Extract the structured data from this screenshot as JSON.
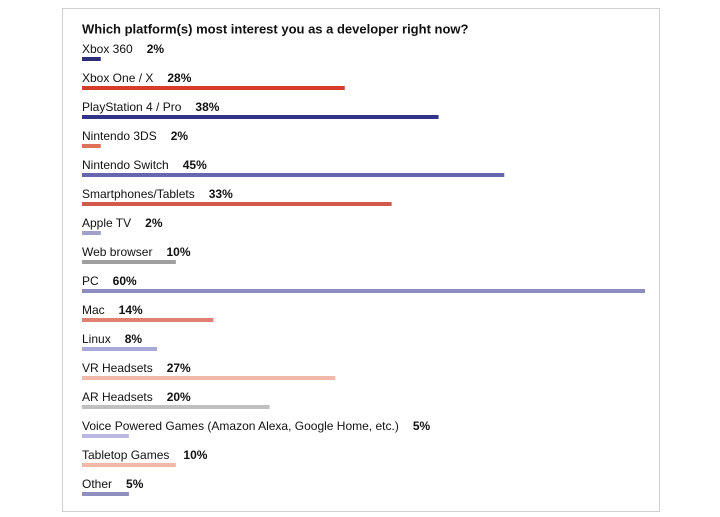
{
  "chart_data": {
    "type": "hbar",
    "title": "Which platform(s) most interest you as a developer right now?",
    "categories": [
      "Xbox 360",
      "Xbox One / X",
      "PlayStation 4 / Pro",
      "Nintendo 3DS",
      "Nintendo Switch",
      "Smartphones/Tablets",
      "Apple TV",
      "Web browser",
      "PC",
      "Mac",
      "Linux",
      "VR Headsets",
      "AR Headsets",
      "Voice Powered Games (Amazon Alexa, Google Home, etc.)",
      "Tabletop Games",
      "Other"
    ],
    "values": [
      2,
      28,
      38,
      2,
      45,
      33,
      2,
      10,
      60,
      14,
      8,
      27,
      20,
      5,
      10,
      5
    ],
    "value_labels": [
      "2%",
      "28%",
      "38%",
      "2%",
      "45%",
      "33%",
      "2%",
      "10%",
      "60%",
      "14%",
      "8%",
      "27%",
      "20%",
      "5%",
      "10%",
      "5%"
    ],
    "colors": [
      "#2e2d7a",
      "#d93a2b",
      "#34338a",
      "#e0705a",
      "#6666b0",
      "#d2584a",
      "#a0a0c8",
      "#a0a0a0",
      "#8c8cc0",
      "#e08070",
      "#a8a8d8",
      "#f2b8a8",
      "#c0c0c0",
      "#b8b8e0",
      "#f2b8a8",
      "#9090c0"
    ]
  }
}
